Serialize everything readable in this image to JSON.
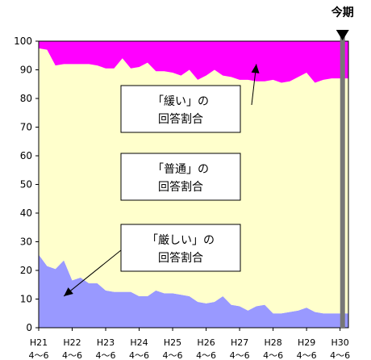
{
  "chart_data": {
    "type": "area",
    "ylim": [
      0,
      100
    ],
    "yticks": [
      0,
      10,
      20,
      30,
      40,
      50,
      60,
      70,
      80,
      90,
      100
    ],
    "x_labels": [
      {
        "line1": "H21",
        "line2": "4～6",
        "index": 0
      },
      {
        "line1": "H22",
        "line2": "4～6",
        "index": 4
      },
      {
        "line1": "H23",
        "line2": "4～6",
        "index": 8
      },
      {
        "line1": "H24",
        "line2": "4～6",
        "index": 12
      },
      {
        "line1": "H25",
        "line2": "4～6",
        "index": 16
      },
      {
        "line1": "H26",
        "line2": "4～6",
        "index": 20
      },
      {
        "line1": "H27",
        "line2": "4～6",
        "index": 24
      },
      {
        "line1": "H28",
        "line2": "4～6",
        "index": 28
      },
      {
        "line1": "H29",
        "line2": "4～6",
        "index": 32
      },
      {
        "line1": "H30",
        "line2": "4～6",
        "index": 36
      }
    ],
    "series": [
      {
        "name": "「厳しい」の回答割合",
        "color": "#9999ff",
        "values": [
          25.5,
          21.5,
          20.5,
          23.5,
          16.5,
          17.5,
          15.5,
          15.5,
          13,
          12.5,
          12.5,
          12.5,
          11,
          11,
          13,
          12,
          12,
          11.5,
          11,
          9,
          8.5,
          9,
          11,
          8,
          7.5,
          6,
          7.5,
          8,
          5,
          5,
          5.5,
          6,
          7,
          5.5,
          5,
          5,
          5,
          5
        ]
      },
      {
        "name": "「普通」の回答割合",
        "color": "#ffffcc",
        "values": [
          72,
          75.5,
          71,
          68.5,
          75.5,
          74.5,
          76.5,
          76,
          77.5,
          78,
          81.5,
          78,
          80,
          81.5,
          76.5,
          77.5,
          77,
          76.5,
          79,
          77.5,
          79.5,
          81,
          77,
          79.5,
          79,
          80.5,
          78.5,
          78,
          81.5,
          80.5,
          80.5,
          81.5,
          82,
          80,
          81.5,
          82,
          82,
          82
        ]
      },
      {
        "name": "「緩い」の回答割合",
        "color": "#ff00ff",
        "values": [
          2.5,
          3,
          8.5,
          8,
          8,
          8,
          8,
          8.5,
          9.5,
          9.5,
          6,
          9.5,
          9,
          7.5,
          10.5,
          10.5,
          11,
          12,
          10,
          13.5,
          12,
          10,
          12,
          12.5,
          13.5,
          13.5,
          14,
          14,
          13.5,
          14.5,
          14,
          12.5,
          11,
          14.5,
          13.5,
          13,
          13,
          13
        ]
      }
    ],
    "marker": {
      "label": "今期",
      "index": 36.3
    }
  }
}
